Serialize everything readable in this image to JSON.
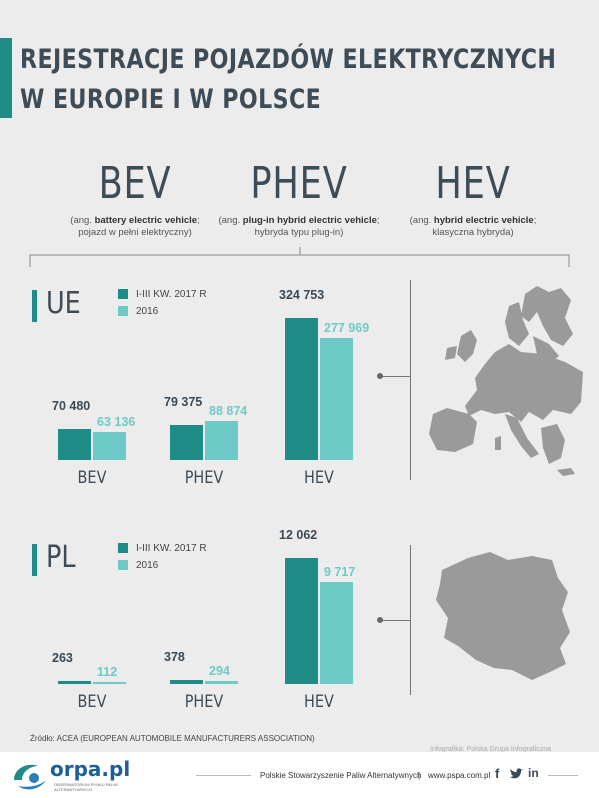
{
  "title_lines": [
    "REJESTRACJE POJAZDÓW ELEKTRYCZNYCH",
    "W EUROPIE I W POLSCE"
  ],
  "categories": [
    {
      "abbr": "BEV",
      "desc_prefix": "(ang. ",
      "desc_bold": "battery electric vehicle",
      "desc_suffix": ";",
      "desc_line2": "pojazd w pełni elektryczny)"
    },
    {
      "abbr": "PHEV",
      "desc_prefix": "(ang. ",
      "desc_bold": "plug-in hybrid electric vehicle",
      "desc_suffix": ";",
      "desc_line2": "hybryda typu plug-in)"
    },
    {
      "abbr": "HEV",
      "desc_prefix": "(ang. ",
      "desc_bold": "hybrid electric vehicle",
      "desc_suffix": ";",
      "desc_line2": "klasyczna hybryda)"
    }
  ],
  "colors": {
    "series_2017": "#1f8c87",
    "series_2016": "#6dcac7",
    "accent": "#1f8c87",
    "map": "#9a9a9a"
  },
  "chart_data": [
    {
      "type": "bar",
      "section": "UE",
      "categories": [
        "BEV",
        "PHEV",
        "HEV"
      ],
      "series": [
        {
          "name": "I-III KW. 2017 R",
          "values": [
            70480,
            79375,
            324753
          ]
        },
        {
          "name": "2016",
          "values": [
            63136,
            88874,
            277969
          ]
        }
      ],
      "value_labels": [
        [
          "70 480",
          "79 375",
          "324 753"
        ],
        [
          "63 136",
          "88 874",
          "277 969"
        ]
      ],
      "legend": "top-left"
    },
    {
      "type": "bar",
      "section": "PL",
      "categories": [
        "BEV",
        "PHEV",
        "HEV"
      ],
      "series": [
        {
          "name": "I-III KW. 2017 R",
          "values": [
            263,
            378,
            12062
          ]
        },
        {
          "name": "2016",
          "values": [
            112,
            294,
            9717
          ]
        }
      ],
      "value_labels": [
        [
          "263",
          "378",
          "12 062"
        ],
        [
          "112",
          "294",
          "9 717"
        ]
      ],
      "legend": "top-left"
    }
  ],
  "map_icons": [
    "europe-map-icon",
    "poland-map-icon"
  ],
  "source": "Źródło: ACEA (EUROPEAN AUTOMOBILE MANUFACTURERS ASSOCIATION)",
  "credit": "Infografika: Polska Grupa Infograficzna",
  "footer": {
    "logo_text": "orpa.pl",
    "logo_sub": "OBSERWATORIUM RYNKU PALIW ALTERNATYWNYCH",
    "org": "Polskie Stowarzyszenie Paliw Alternatywnych",
    "separator": "|",
    "url": "www.pspa.com.pl",
    "social_icons": [
      "facebook-icon",
      "twitter-icon",
      "linkedin-icon"
    ]
  }
}
